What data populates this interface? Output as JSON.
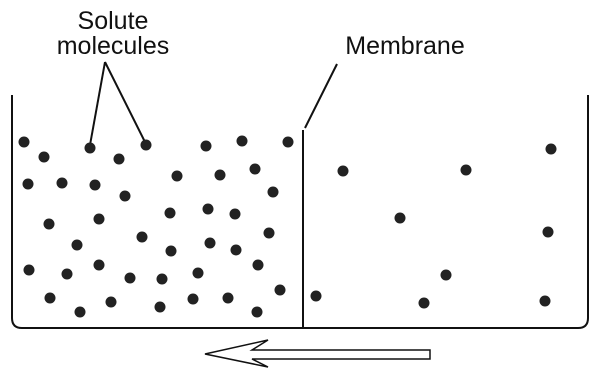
{
  "labels": {
    "solute": [
      "Solute",
      "molecules"
    ],
    "membrane": "Membrane"
  }
}
